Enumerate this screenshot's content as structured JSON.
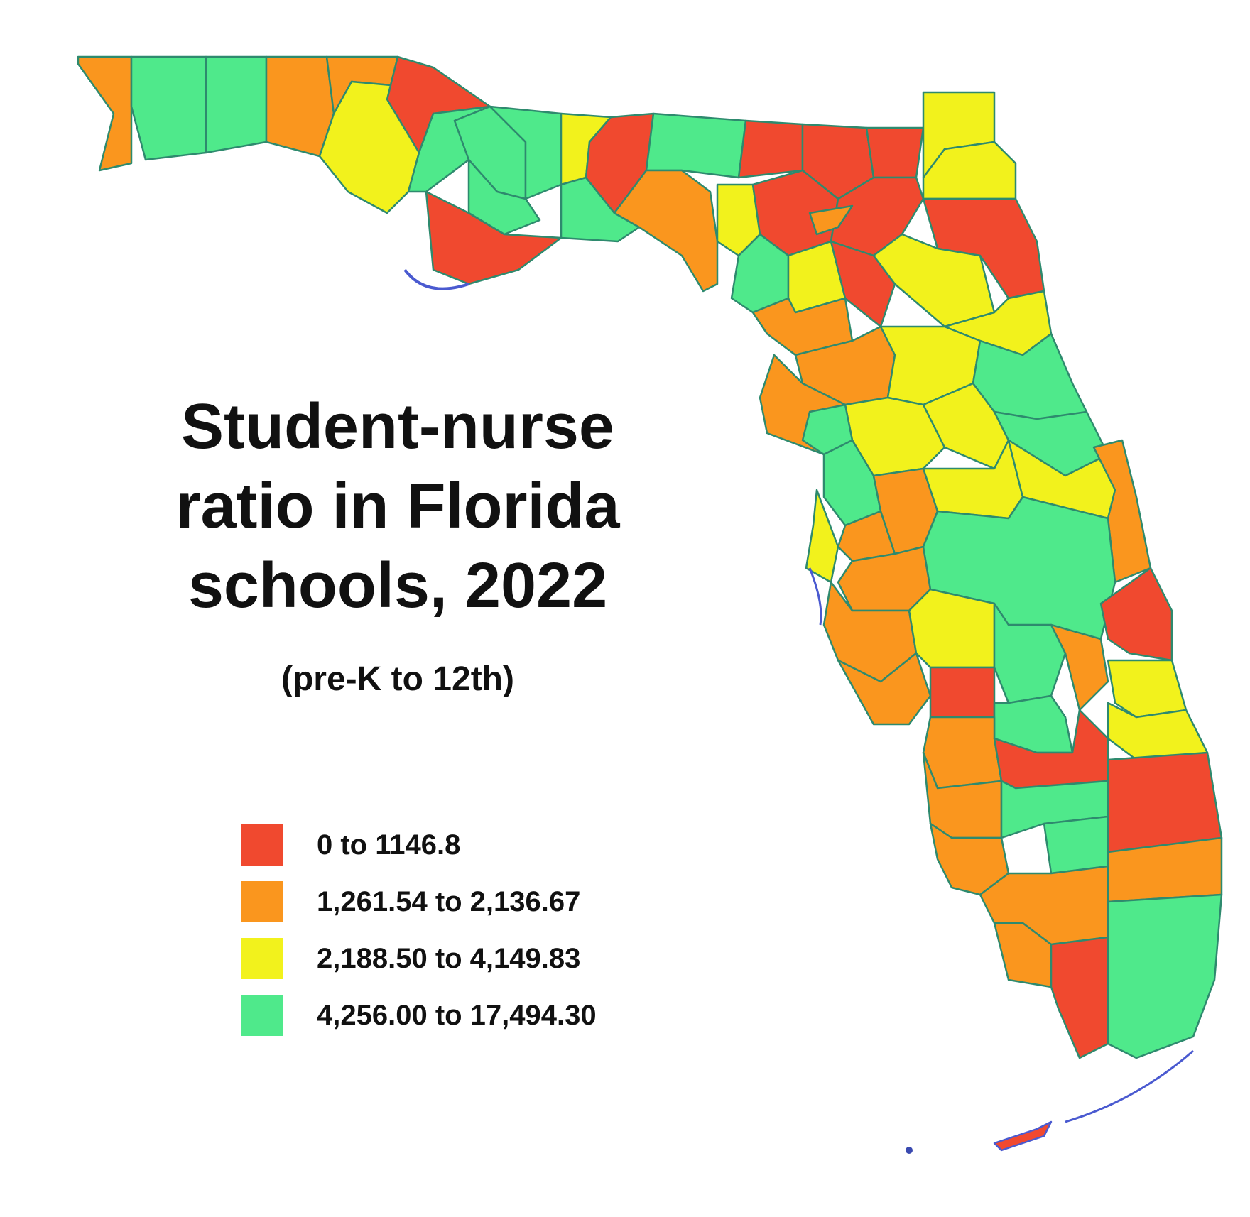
{
  "title_lines": [
    "Student-nurse",
    "ratio in Florida",
    "schools, 2022"
  ],
  "subtitle": "(pre-K to 12th)",
  "legend": [
    {
      "label": "0 to 1146.8",
      "color": "#f0492f"
    },
    {
      "label": "1,261.54 to 2,136.67",
      "color": "#fa961e"
    },
    {
      "label": "2,188.50 to 4,149.83",
      "color": "#f2f21c"
    },
    {
      "label": "4,256.00 to 17,494.30",
      "color": "#4fe98b"
    }
  ],
  "region_border_color": "#2e8a6e"
}
